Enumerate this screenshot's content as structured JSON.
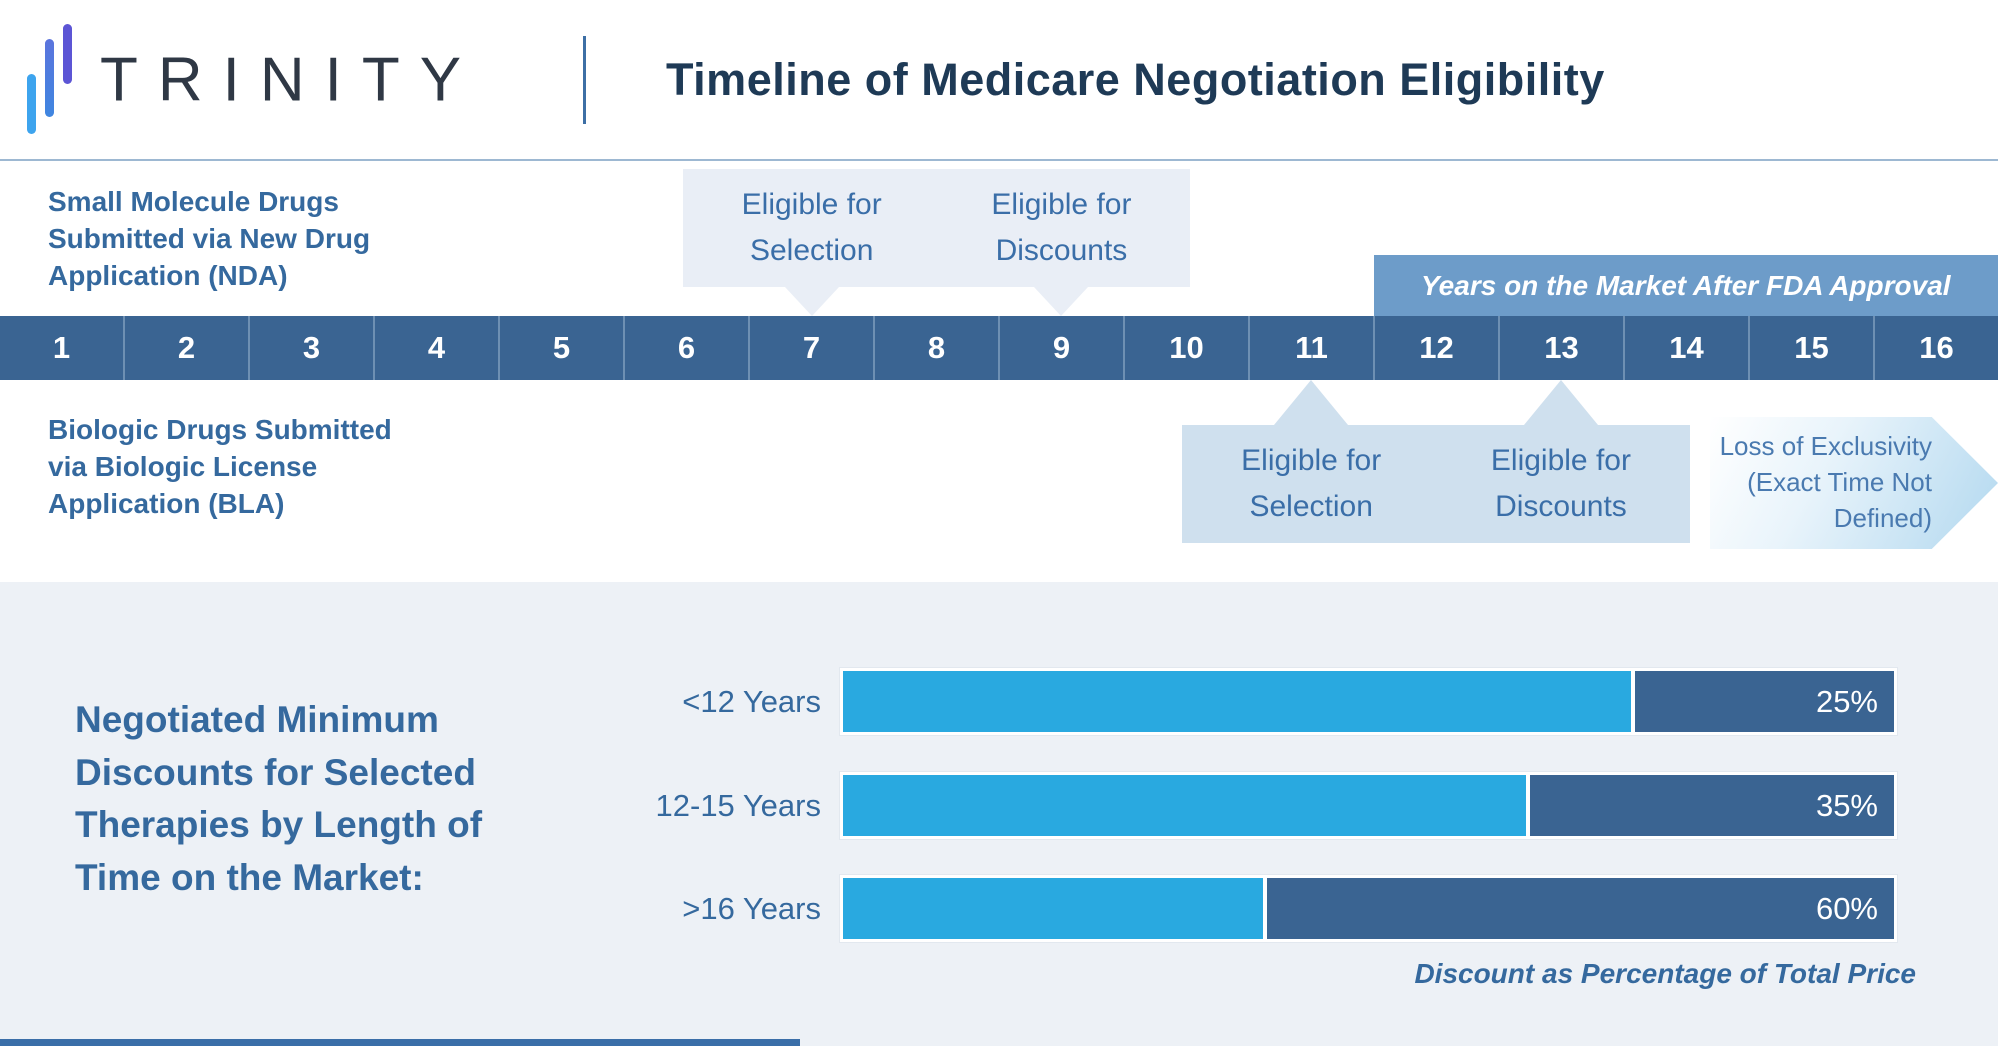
{
  "header": {
    "brand": "TRINITY",
    "title": "Timeline of Medicare Negotiation Eligibility"
  },
  "timeline": {
    "years": [
      "1",
      "2",
      "3",
      "4",
      "5",
      "6",
      "7",
      "8",
      "9",
      "10",
      "11",
      "12",
      "13",
      "14",
      "15",
      "16"
    ],
    "axis_label": "Years on the Market After FDA Approval",
    "nda_label": "Small Molecule Drugs Submitted via New Drug Application (NDA)",
    "bla_label": "Biologic Drugs Submitted via Biologic License Application (BLA)",
    "nda_callouts": [
      {
        "label": "Eligible for Selection",
        "year": "7"
      },
      {
        "label": "Eligible for Discounts",
        "year": "9"
      }
    ],
    "bla_callouts": [
      {
        "label": "Eligible for Selection",
        "year": "11"
      },
      {
        "label": "Eligible for Discounts",
        "year": "13"
      }
    ],
    "loe_label": "Loss of Exclusivity (Exact Time Not Defined)"
  },
  "chart": {
    "heading": "Negotiated Minimum Discounts for Selected Therapies by Length of Time on the Market:",
    "rows": [
      {
        "label": "<12 Years",
        "pct_label": "25%"
      },
      {
        "label": "12-15 Years",
        "pct_label": "35%"
      },
      {
        "label": ">16 Years",
        "pct_label": "60%"
      }
    ],
    "caption": "Discount as Percentage of Total Price"
  },
  "chart_data": {
    "type": "bar",
    "orientation": "horizontal",
    "categories": [
      "<12 Years",
      "12-15 Years",
      ">16 Years"
    ],
    "values": [
      25,
      35,
      60
    ],
    "title": "Negotiated Minimum Discounts for Selected Therapies by Length of Time on the Market",
    "xlabel": "Discount as Percentage of Total Price",
    "ylabel": "Years on the Market",
    "xlim": [
      0,
      100
    ],
    "legend": "none",
    "note": "Each bar is a full-price stacked bar: dark-blue segment = minimum negotiated discount percent, light-blue segment = remainder of total price"
  },
  "colors": {
    "accent_light_blue": "#29a9e0",
    "accent_dark_blue": "#3a6492",
    "axis_banner_blue": "#6d9cc9",
    "text_blue": "#35699e",
    "title_navy": "#1e3a56",
    "callout_light_bg": "#e9eef6",
    "callout_medium_bg": "#cfe0ee",
    "section_bg": "#edf1f6",
    "logo_bar_light": "#3da4ee",
    "logo_bar_mid": "#4679dd",
    "logo_bar_purple": "#5c55d5"
  }
}
